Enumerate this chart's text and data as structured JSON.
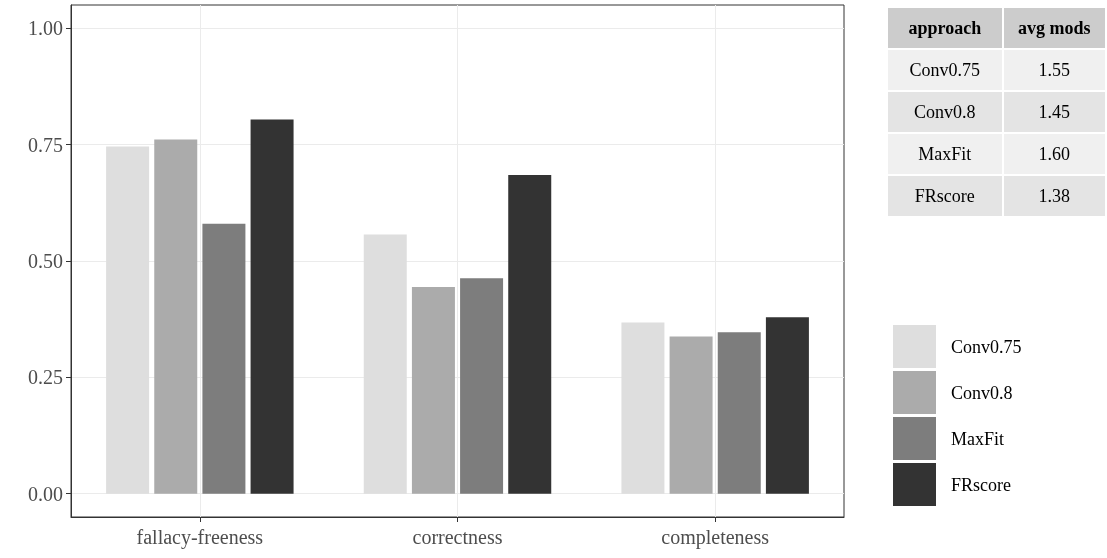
{
  "chart_data": [
    {
      "type": "bar",
      "categories": [
        "fallacy-freeness",
        "correctness",
        "completeness"
      ],
      "series": [
        {
          "name": "Conv0.75",
          "color": "#dedede",
          "values": [
            0.746,
            0.557,
            0.368
          ]
        },
        {
          "name": "Conv0.8",
          "color": "#ababab",
          "values": [
            0.761,
            0.444,
            0.338
          ]
        },
        {
          "name": "MaxFit",
          "color": "#7d7d7d",
          "values": [
            0.58,
            0.463,
            0.347
          ]
        },
        {
          "name": "FRscore",
          "color": "#333333",
          "values": [
            0.804,
            0.685,
            0.379
          ]
        }
      ],
      "ylim": [
        -0.05,
        1.05
      ],
      "yticks": [
        {
          "value": 0,
          "label": "0.00"
        },
        {
          "value": 0.25,
          "label": "0.25"
        },
        {
          "value": 0.5,
          "label": "0.50"
        },
        {
          "value": 0.75,
          "label": "0.75"
        },
        {
          "value": 1,
          "label": "1.00"
        }
      ],
      "grid": true,
      "legend": "right"
    },
    {
      "type": "other",
      "xlabel": "approach",
      "ylabel": "avg mods",
      "categories": [
        "Conv0.75",
        "Conv0.8",
        "MaxFit",
        "FRscore"
      ],
      "value_labels": [
        "1.55",
        "1.45",
        "1.60",
        "1.38"
      ]
    }
  ]
}
